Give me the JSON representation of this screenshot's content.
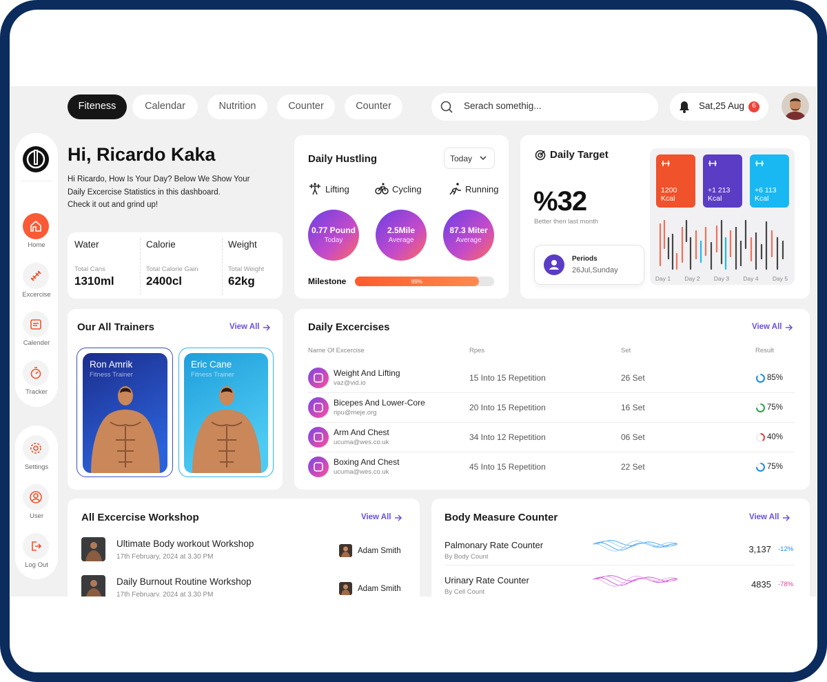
{
  "nav": {
    "tabs": [
      "Fiteness",
      "Calendar",
      "Nutrition",
      "Counter",
      "Counter"
    ],
    "search_placeholder": "Serach somethig...",
    "date": "Sat,25 Aug",
    "notifications": "6"
  },
  "sidebar": {
    "items": [
      "Home",
      "Excercise",
      "Calender",
      "Tracker"
    ],
    "bottom_items": [
      "Settings",
      "User",
      "Log Out"
    ]
  },
  "greeting": {
    "title": "Hi, Ricardo Kaka",
    "lines": [
      "Hi Ricardo, How Is Your Day? Below We Show Your",
      "Daily Excercise Statistics in this dashboard.",
      "Check it out and grind up!"
    ]
  },
  "stats": [
    {
      "label": "Water",
      "sub": "Total Cans",
      "value": "1310ml"
    },
    {
      "label": "Calorie",
      "sub": "Total Calorie Gain",
      "value": "2400cl"
    },
    {
      "label": "Weight",
      "sub": "Total Weight",
      "value": "62kg"
    }
  ],
  "daily_hustling": {
    "title": "Daily Hustling",
    "filter": "Today",
    "activities": [
      "Lifting",
      "Cycling",
      "Running"
    ],
    "metrics": [
      {
        "value": "0.77 Pound",
        "label": "Today"
      },
      {
        "value": "2.5Mile",
        "label": "Average"
      },
      {
        "value": "87.3 Miter",
        "label": "Average"
      }
    ],
    "milestone_label": "Milestone",
    "milestone": "89%"
  },
  "daily_target": {
    "title": "Daily Target",
    "value": "%32",
    "caption": "Better then last month",
    "period_label": "Periods",
    "period_date": "26Jul,Sunday",
    "tiles": [
      {
        "value": "1200",
        "unit": "Kcal"
      },
      {
        "value": "+1 213",
        "unit": "Kcal"
      },
      {
        "value": "+6 113",
        "unit": "Kcal"
      }
    ],
    "days": [
      "Day 1",
      "Day 2",
      "Day 3",
      "Day 4",
      "Day 5"
    ]
  },
  "trainers": {
    "title": "Our All Trainers",
    "view_all": "View All",
    "people": [
      {
        "name": "Ron Amrik",
        "role": "Fitness Trainer"
      },
      {
        "name": "Eric Cane",
        "role": "Fitness Trainer"
      }
    ]
  },
  "exercises": {
    "title": "Daily Excercises",
    "view_all": "View All",
    "headers": [
      "Name Of Excercise",
      "Rpes",
      "Set",
      "Result"
    ],
    "rows": [
      {
        "name": "Weight And Lifting",
        "email": "vaz@vid.io",
        "reps": "15 Into 15 Repetition",
        "set": "26 Set",
        "result": "85%"
      },
      {
        "name": "Bicepes And Lower-Core",
        "email": "ripu@meje.org",
        "reps": "20 Into 15 Repetition",
        "set": "16 Set",
        "result": "75%"
      },
      {
        "name": "Arm And Chest",
        "email": "ucuma@wes.co.uk",
        "reps": "34 Into 12 Repetition",
        "set": "06 Set",
        "result": "40%"
      },
      {
        "name": "Boxing And Chest",
        "email": "ucuma@wes.co.uk",
        "reps": "45 Into 15 Repetition",
        "set": "22 Set",
        "result": "75%"
      }
    ]
  },
  "workshops": {
    "title": "All Excercise Workshop",
    "view_all": "View All",
    "rows": [
      {
        "title": "Ultimate Body workout Workshop",
        "date": "17th February, 2024 at 3.30 PM",
        "trainer": "Adam Smith"
      },
      {
        "title": "Daily Burnout Routine Workshop",
        "date": "17th February, 2024 at 3.30 PM",
        "trainer": "Adam Smith"
      }
    ]
  },
  "body_measure": {
    "title": "Body Measure Counter",
    "view_all": "View All",
    "rows": [
      {
        "name": "Palmonary Rate Counter",
        "sub": "By Body Count",
        "value": "3,137",
        "change": "-12%"
      },
      {
        "name": "Urinary Rate Counter",
        "sub": "By Cell Count",
        "value": "4835",
        "change": "-78%"
      }
    ]
  }
}
